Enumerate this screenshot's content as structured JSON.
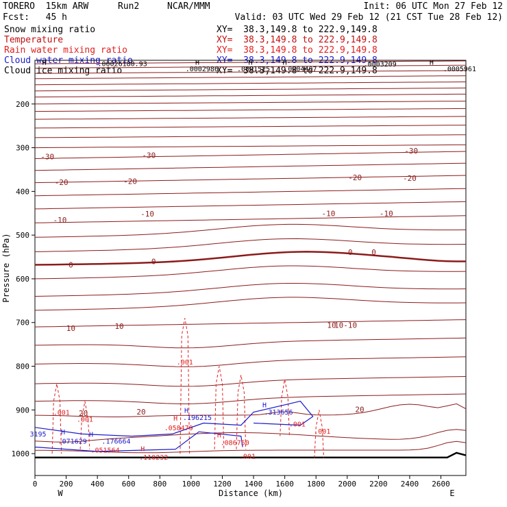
{
  "header": {
    "model": "TORERO  15km ARW",
    "run": "Run2",
    "org": "NCAR/MMM",
    "init": "Init: 06 UTC Mon 27 Feb 12",
    "fcst": "Fcst:   45 h",
    "valid": "Valid: 03 UTC Wed 29 Feb 12 (21 CST Tue 28 Feb 12)"
  },
  "colors": {
    "temperature": "#8b1a1a",
    "snow": "#000000",
    "rain": "#e02020",
    "cloud_water": "#1a1acc",
    "cloud_ice": "#000000",
    "terrain": "#000000"
  },
  "legend": [
    {
      "label": "Snow mixing ratio",
      "xy": "XY=  38.3,149.8 to 222.9,149.8",
      "color": "#000000"
    },
    {
      "label": "Temperature",
      "xy": "XY=  38.3,149.8 to 222.9,149.8",
      "color": "#c01010"
    },
    {
      "label": "Rain water mixing ratio",
      "xy": "XY=  38.3,149.8 to 222.9,149.8",
      "color": "#e02020"
    },
    {
      "label": "Cloud water mixing ratio",
      "xy": "XY=  38.3,149.8 to 222.9,149.8",
      "color": "#1a1acc"
    },
    {
      "label": "Cloud ice mixing ratio",
      "xy": "XY=  38.3,149.8 to 222.9,149.8",
      "color": "#000000"
    }
  ],
  "chart_data": {
    "type": "cross-section contour",
    "xlabel": "Distance (km)",
    "ylabel": "Pressure (hPa)",
    "xlim": [
      0,
      2760
    ],
    "ylim": [
      1050,
      100
    ],
    "x_ticks": [
      0,
      200,
      400,
      600,
      800,
      1000,
      1200,
      1400,
      1600,
      1800,
      2000,
      2200,
      2400,
      2600
    ],
    "y_ticks": [
      200,
      300,
      400,
      500,
      600,
      700,
      800,
      900,
      1000
    ],
    "west_label": "W",
    "east_label": "E",
    "temperature_levels": [
      -30,
      -20,
      -10,
      0,
      10,
      20
    ],
    "temperature_labels": [
      {
        "text": "-30",
        "x": 80,
        "p": 320
      },
      {
        "text": "-30",
        "x": 730,
        "p": 317
      },
      {
        "text": "-30",
        "x": 2410,
        "p": 307
      },
      {
        "text": "-20",
        "x": 170,
        "p": 379
      },
      {
        "text": "-20",
        "x": 610,
        "p": 377
      },
      {
        "text": "-20",
        "x": 2050,
        "p": 368
      },
      {
        "text": "-20",
        "x": 2400,
        "p": 370
      },
      {
        "text": "-10",
        "x": 160,
        "p": 465
      },
      {
        "text": "-10",
        "x": 720,
        "p": 451
      },
      {
        "text": "-10",
        "x": 1880,
        "p": 450
      },
      {
        "text": "-10",
        "x": 2250,
        "p": 450
      },
      {
        "text": "0",
        "x": 230,
        "p": 568
      },
      {
        "text": "0",
        "x": 760,
        "p": 560
      },
      {
        "text": "0",
        "x": 2020,
        "p": 539
      },
      {
        "text": "0",
        "x": 2170,
        "p": 539
      },
      {
        "text": "10",
        "x": 230,
        "p": 713
      },
      {
        "text": "10",
        "x": 540,
        "p": 708
      },
      {
        "text": "10",
        "x": 1900,
        "p": 706
      },
      {
        "text": "10-10",
        "x": 1990,
        "p": 706
      },
      {
        "text": "20",
        "x": 310,
        "p": 907
      },
      {
        "text": "20",
        "x": 680,
        "p": 904
      },
      {
        "text": "20",
        "x": 2080,
        "p": 899
      }
    ],
    "max_labels": [
      {
        "text": "H",
        "x": 60,
        "p": 104
      },
      {
        "text": ".00026180.93",
        "x": 560,
        "p": 107
      },
      {
        "text": "H",
        "x": 1040,
        "p": 104
      },
      {
        "text": ".0002986",
        "x": 1070,
        "p": 119
      },
      {
        "text": "H",
        "x": 1380,
        "p": 104
      },
      {
        "text": ".0001525",
        "x": 1400,
        "p": 119
      },
      {
        "text": "H",
        "x": 1600,
        "p": 104
      },
      {
        "text": ".0004407",
        "x": 1700,
        "p": 119
      },
      {
        "text": ".0003209",
        "x": 2210,
        "p": 108
      },
      {
        "text": "H",
        "x": 2540,
        "p": 104
      },
      {
        "text": ".0005961",
        "x": 2720,
        "p": 119
      }
    ],
    "rain_labels": [
      {
        "text": ".001",
        "x": 960,
        "p": 790
      },
      {
        "text": ".001",
        "x": 170,
        "p": 905
      },
      {
        "text": ".001",
        "x": 320,
        "p": 921
      },
      {
        "text": ".001",
        "x": 1840,
        "p": 948
      },
      {
        "text": ".001",
        "x": 1360,
        "p": 1005
      },
      {
        "text": ".001",
        "x": 1680,
        "p": 932
      },
      {
        "text": "H",
        "x": 900,
        "p": 918
      },
      {
        "text": ".058479",
        "x": 920,
        "p": 940
      },
      {
        "text": "H",
        "x": 690,
        "p": 988
      },
      {
        "text": ".110232",
        "x": 760,
        "p": 1008
      },
      {
        "text": "H",
        "x": 1180,
        "p": 957
      },
      {
        "text": ".086750",
        "x": 1280,
        "p": 974
      },
      {
        "text": ".051564",
        "x": 450,
        "p": 991
      }
    ],
    "cloud_water_labels": [
      {
        "text": "H",
        "x": 970,
        "p": 900
      },
      {
        "text": ".196215",
        "x": 1040,
        "p": 917
      },
      {
        "text": "H",
        "x": 1470,
        "p": 888
      },
      {
        "text": ".313656",
        "x": 1560,
        "p": 904
      },
      {
        "text": "H",
        "x": 180,
        "p": 950
      },
      {
        "text": ".071629",
        "x": 240,
        "p": 971
      },
      {
        "text": "H",
        "x": 360,
        "p": 955
      },
      {
        "text": ".176664",
        "x": 520,
        "p": 971
      },
      {
        "text": "3195",
        "x": 20,
        "p": 954
      }
    ]
  }
}
